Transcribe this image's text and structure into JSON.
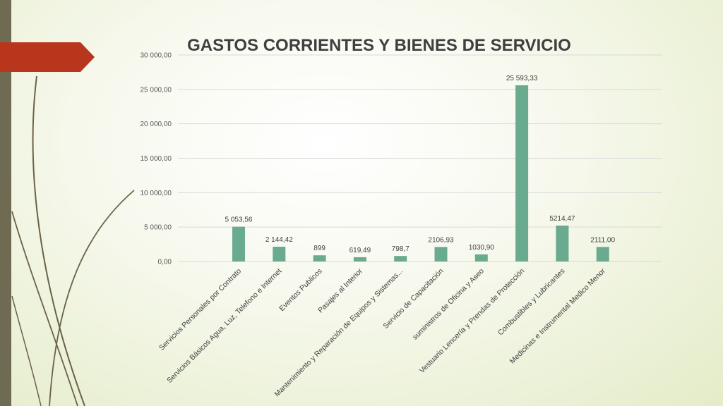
{
  "colors": {
    "bar": "#6aaa8e",
    "grid": "#d9d9d9",
    "accent_tab": "#b8361c",
    "side_bar": "#6f6a52"
  },
  "chart_data": {
    "type": "bar",
    "title": "GASTOS CORRIENTES Y BIENES DE SERVICIO",
    "xlabel": "",
    "ylabel": "",
    "ylim": [
      0,
      30000
    ],
    "grid": true,
    "legend": "none",
    "yticks": [
      "0,00",
      "5 000,00",
      "10 000,00",
      "15 000,00",
      "20 000,00",
      "25 000,00",
      "30 000,00"
    ],
    "categories": [
      "Servicios Personales por Contrato",
      "Servicios Básicos Agua, Luz, Telefono e Internet",
      "Eventos Publicos",
      "Pasajes al Interior",
      "Mantenimiento y Reparación de Equipos y Sistemas...",
      "Servicio de Capacitación",
      "suministros de Oficina y Aseo",
      "Vestuario Lencería y Prendas de Protección",
      "Combustibles y Lubricantes",
      "Medicinas e Instrumental Medico Menor"
    ],
    "values": [
      5053.56,
      2144.42,
      899,
      619.49,
      798.7,
      2106.93,
      1030.9,
      25593.33,
      5214.47,
      2111.0
    ],
    "data_labels": [
      "5 053,56",
      "2 144,42",
      "899",
      "619,49",
      "798,7",
      "2106,93",
      "1030,90",
      "25 593,33",
      "5214,47",
      "2111,00"
    ]
  }
}
